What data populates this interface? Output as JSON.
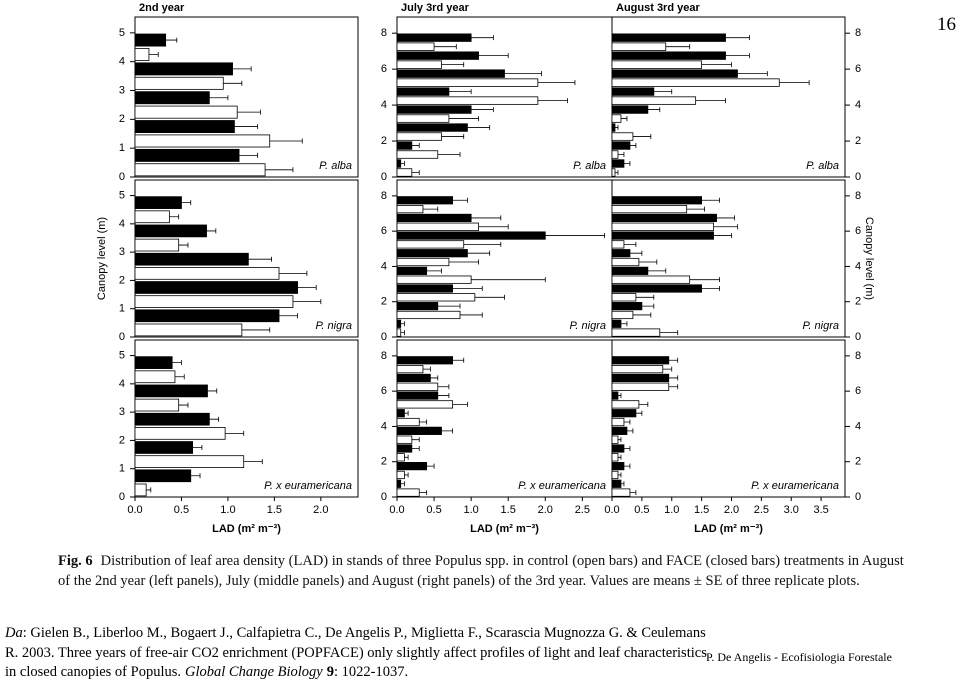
{
  "chart_data": [
    {
      "type": "bar",
      "title": "2nd year",
      "annotation": "P. alba",
      "xlim": [
        0,
        2.4
      ],
      "ylim": [
        0,
        5.55
      ],
      "yticks": [
        0,
        1,
        2,
        3,
        4,
        5
      ],
      "levels": [
        0.5,
        1.5,
        2.5,
        3.5,
        4.5
      ],
      "series": [
        {
          "color": "#ffffff",
          "values": [
            1.4,
            1.45,
            1.1,
            0.95,
            0.15
          ],
          "errors": [
            0.3,
            0.35,
            0.25,
            0.2,
            0.1
          ]
        },
        {
          "color": "#000000",
          "values": [
            1.12,
            1.07,
            0.8,
            1.05,
            0.33
          ],
          "errors": [
            0.2,
            0.25,
            0.2,
            0.2,
            0.12
          ]
        }
      ]
    },
    {
      "type": "bar",
      "title": "July 3rd year",
      "annotation": "P. alba",
      "xlim": [
        0,
        2.9
      ],
      "ylim": [
        0,
        8.9
      ],
      "yticks": [
        0,
        2,
        4,
        6,
        8
      ],
      "levels": [
        0.5,
        1.5,
        2.5,
        3.5,
        4.5,
        5.5,
        6.5,
        7.5
      ],
      "series": [
        {
          "color": "#ffffff",
          "values": [
            0.2,
            0.55,
            0.6,
            0.7,
            1.9,
            1.9,
            0.6,
            0.5
          ],
          "errors": [
            0.1,
            0.3,
            0.3,
            0.4,
            0.4,
            0.5,
            0.3,
            0.3
          ]
        },
        {
          "color": "#000000",
          "values": [
            0.05,
            0.2,
            0.95,
            1.0,
            0.7,
            1.45,
            1.1,
            1.0
          ],
          "errors": [
            0.05,
            0.1,
            0.3,
            0.3,
            0.3,
            0.5,
            0.4,
            0.3
          ]
        }
      ]
    },
    {
      "type": "bar",
      "title": "August 3rd year",
      "annotation": "P. alba",
      "yaxis": "right",
      "xlim": [
        0,
        3.9
      ],
      "ylim": [
        0,
        8.9
      ],
      "yticks": [
        0,
        2,
        4,
        6,
        8
      ],
      "levels": [
        0.5,
        1.5,
        2.5,
        3.5,
        4.5,
        5.5,
        6.5,
        7.5
      ],
      "series": [
        {
          "color": "#ffffff",
          "values": [
            0.05,
            0.1,
            0.35,
            0.15,
            1.4,
            2.8,
            1.5,
            0.9
          ],
          "errors": [
            0.05,
            0.1,
            0.3,
            0.1,
            0.5,
            0.5,
            0.5,
            0.4
          ]
        },
        {
          "color": "#000000",
          "values": [
            0.2,
            0.3,
            0.05,
            0.6,
            0.7,
            2.1,
            1.9,
            1.9
          ],
          "errors": [
            0.1,
            0.1,
            0.05,
            0.2,
            0.3,
            0.5,
            0.4,
            0.4
          ]
        }
      ]
    },
    {
      "type": "bar",
      "annotation": "P. nigra",
      "ylabel": "Canopy level (m)",
      "xlim": [
        0,
        2.4
      ],
      "ylim": [
        0,
        5.55
      ],
      "yticks": [
        0,
        1,
        2,
        3,
        4,
        5
      ],
      "levels": [
        0.5,
        1.5,
        2.5,
        3.5,
        4.5
      ],
      "series": [
        {
          "color": "#ffffff",
          "values": [
            1.15,
            1.7,
            1.55,
            0.47,
            0.37
          ],
          "errors": [
            0.3,
            0.3,
            0.3,
            0.1,
            0.1
          ]
        },
        {
          "color": "#000000",
          "values": [
            1.55,
            1.75,
            1.22,
            0.77,
            0.5
          ],
          "errors": [
            0.2,
            0.2,
            0.25,
            0.1,
            0.1
          ]
        }
      ]
    },
    {
      "type": "bar",
      "annotation": "P. nigra",
      "xlim": [
        0,
        2.9
      ],
      "ylim": [
        0,
        8.9
      ],
      "yticks": [
        0,
        2,
        4,
        6,
        8
      ],
      "levels": [
        0.5,
        1.5,
        2.5,
        3.5,
        4.5,
        5.5,
        6.5,
        7.5
      ],
      "series": [
        {
          "color": "#ffffff",
          "values": [
            0.05,
            0.85,
            1.05,
            1.0,
            0.7,
            0.9,
            1.1,
            0.35
          ],
          "errors": [
            0.05,
            0.3,
            0.4,
            1.0,
            0.4,
            0.5,
            0.4,
            0.2
          ]
        },
        {
          "color": "#000000",
          "values": [
            0.05,
            0.55,
            0.75,
            0.4,
            0.95,
            2.0,
            1.0,
            0.75
          ],
          "errors": [
            0.05,
            0.3,
            0.4,
            0.2,
            0.3,
            0.8,
            0.4,
            0.2
          ]
        }
      ]
    },
    {
      "type": "bar",
      "annotation": "P. nigra",
      "ylabel": "Canopy level (m)",
      "yaxis": "right",
      "xlim": [
        0,
        3.9
      ],
      "ylim": [
        0,
        8.9
      ],
      "yticks": [
        0,
        2,
        4,
        6,
        8
      ],
      "levels": [
        0.5,
        1.5,
        2.5,
        3.5,
        4.5,
        5.5,
        6.5,
        7.5
      ],
      "series": [
        {
          "color": "#ffffff",
          "values": [
            0.8,
            0.35,
            0.4,
            1.3,
            0.45,
            0.2,
            1.7,
            1.25
          ],
          "errors": [
            0.3,
            0.3,
            0.3,
            0.5,
            0.3,
            0.2,
            0.4,
            0.3
          ]
        },
        {
          "color": "#000000",
          "values": [
            0.15,
            0.5,
            1.5,
            0.6,
            0.3,
            1.7,
            1.75,
            1.5
          ],
          "errors": [
            0.1,
            0.2,
            0.3,
            0.3,
            0.2,
            0.3,
            0.3,
            0.3
          ]
        }
      ]
    },
    {
      "type": "bar",
      "annotation": "P. x euramericana",
      "xlabel": "LAD (m² m⁻³)",
      "xlim": [
        0,
        2.4
      ],
      "ylim": [
        0,
        5.55
      ],
      "yticks": [
        0,
        1,
        2,
        3,
        4,
        5
      ],
      "xticks": [
        {
          "value": 0,
          "label": "0.0"
        },
        0.5,
        {
          "value": 1,
          "label": "1.0"
        },
        1.5,
        {
          "value": 2,
          "label": "2.0"
        }
      ],
      "levels": [
        0.5,
        1.5,
        2.5,
        3.5,
        4.5
      ],
      "series": [
        {
          "color": "#ffffff",
          "values": [
            0.12,
            1.17,
            0.97,
            0.47,
            0.43
          ],
          "errors": [
            0.05,
            0.2,
            0.2,
            0.1,
            0.1
          ]
        },
        {
          "color": "#000000",
          "values": [
            0.6,
            0.62,
            0.8,
            0.78,
            0.4
          ],
          "errors": [
            0.1,
            0.1,
            0.1,
            0.1,
            0.1
          ]
        }
      ]
    },
    {
      "type": "bar",
      "annotation": "P. x euramericana",
      "xlabel": "LAD (m² m⁻³)",
      "xlim": [
        0,
        2.9
      ],
      "ylim": [
        0,
        8.9
      ],
      "yticks": [
        0,
        2,
        4,
        6,
        8
      ],
      "xticks": [
        {
          "value": 0,
          "label": "0.0"
        },
        0.5,
        {
          "value": 1,
          "label": "1.0"
        },
        1.5,
        {
          "value": 2,
          "label": "2.0"
        },
        2.5
      ],
      "levels": [
        0.5,
        1.5,
        2.5,
        3.5,
        4.5,
        5.5,
        6.5,
        7.5
      ],
      "series": [
        {
          "color": "#ffffff",
          "values": [
            0.3,
            0.1,
            0.1,
            0.2,
            0.3,
            0.75,
            0.55,
            0.35
          ],
          "errors": [
            0.1,
            0.05,
            0.05,
            0.1,
            0.1,
            0.2,
            0.15,
            0.1
          ]
        },
        {
          "color": "#000000",
          "values": [
            0.05,
            0.4,
            0.2,
            0.6,
            0.1,
            0.55,
            0.45,
            0.75
          ],
          "errors": [
            0.05,
            0.1,
            0.1,
            0.15,
            0.05,
            0.15,
            0.1,
            0.15
          ]
        }
      ]
    },
    {
      "type": "bar",
      "annotation": "P. x euramericana",
      "xlabel": "LAD (m² m⁻³)",
      "yaxis": "right",
      "xlim": [
        0,
        3.9
      ],
      "ylim": [
        0,
        8.9
      ],
      "yticks": [
        0,
        2,
        4,
        6,
        8
      ],
      "xticks": [
        {
          "value": 0,
          "label": "0.0"
        },
        0.5,
        {
          "value": 1,
          "label": "1.0"
        },
        1.5,
        {
          "value": 2,
          "label": "2.0"
        },
        2.5,
        {
          "value": 3,
          "label": "3.0"
        },
        3.5
      ],
      "levels": [
        0.5,
        1.5,
        2.5,
        3.5,
        4.5,
        5.5,
        6.5,
        7.5
      ],
      "series": [
        {
          "color": "#ffffff",
          "values": [
            0.3,
            0.1,
            0.1,
            0.1,
            0.2,
            0.45,
            0.95,
            0.85
          ],
          "errors": [
            0.1,
            0.05,
            0.05,
            0.05,
            0.1,
            0.15,
            0.15,
            0.15
          ]
        },
        {
          "color": "#000000",
          "values": [
            0.15,
            0.2,
            0.2,
            0.25,
            0.4,
            0.1,
            0.95,
            0.95
          ],
          "errors": [
            0.05,
            0.1,
            0.1,
            0.1,
            0.1,
            0.05,
            0.15,
            0.15
          ]
        }
      ]
    }
  ],
  "caption": {
    "label": "Fig. 6",
    "text": "Distribution of leaf area density (LAD) in stands of three Populus spp. in control (open bars) and FACE (closed bars) treatments in August of the 2nd year (left panels), July (middle panels) and August (right panels) of the 3rd year. Values are means ± SE of three replicate plots."
  },
  "citation": {
    "prefix": "Da",
    "body": ": Gielen B., Liberloo M., Bogaert J., Calfapietra C., De Angelis P., Miglietta F., Scarascia Mugnozza G. & Ceulemans R. 2003. Three years of free-air CO2 enrichment (POPFACE) only slightly affect profiles of light and leaf characteristics in closed canopies of Populus.",
    "journal": "Global Change Biology",
    "volume": "9",
    "pages": ": 1022-1037."
  },
  "footer": "P. De Angelis - Ecofisiologia Forestale",
  "page_number": "16"
}
